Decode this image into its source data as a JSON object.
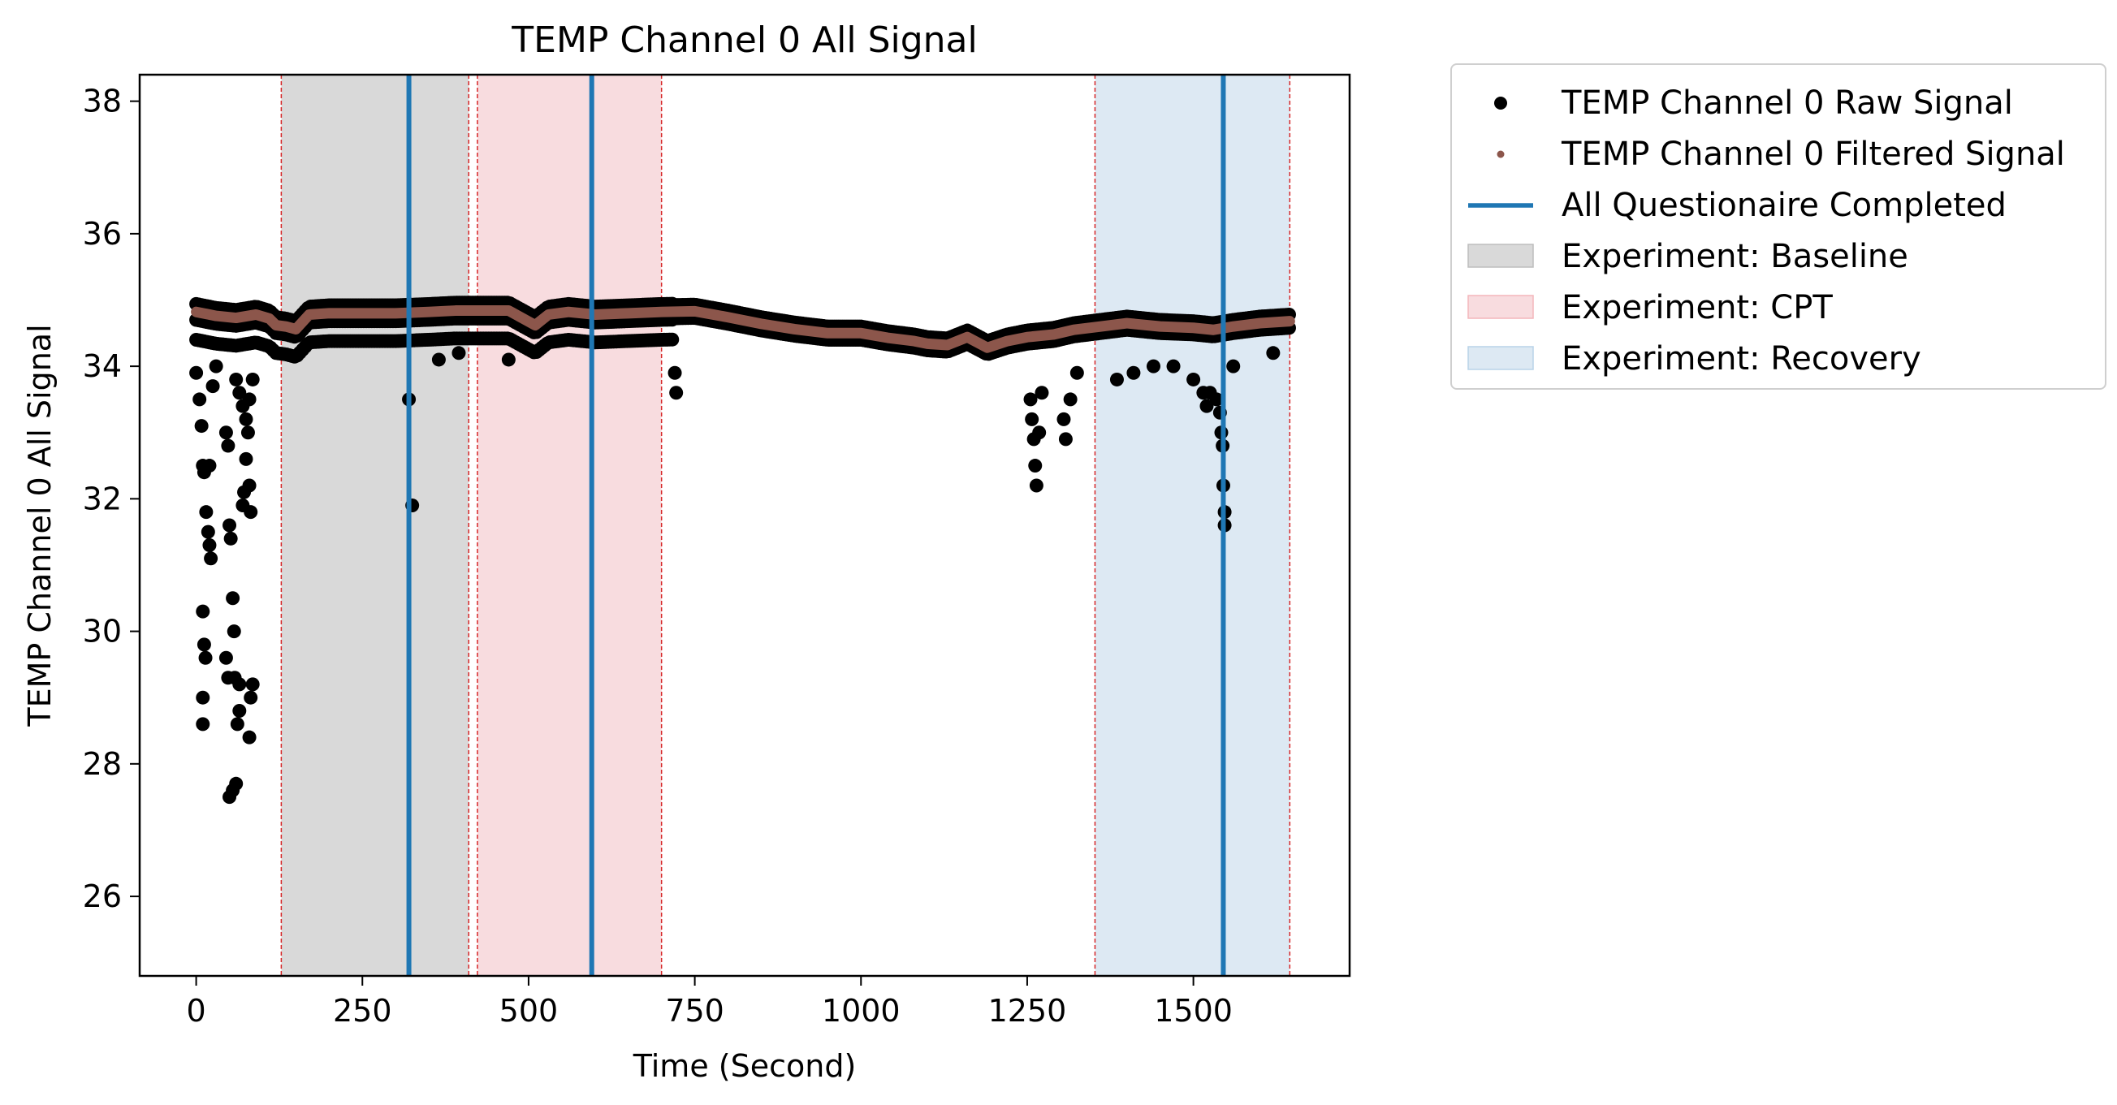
{
  "chart_data": {
    "type": "scatter",
    "title": "TEMP Channel 0 All Signal",
    "xlabel": "Time (Second)",
    "ylabel": "TEMP Channel 0 All Signal",
    "xlim": [
      -85,
      1735
    ],
    "ylim": [
      24.8,
      38.4
    ],
    "xticks": [
      0,
      250,
      500,
      750,
      1000,
      1250,
      1500
    ],
    "xtick_labels": [
      "0",
      "250",
      "500",
      "750",
      "1000",
      "1250",
      "1500"
    ],
    "yticks": [
      26,
      28,
      30,
      32,
      34,
      36,
      38
    ],
    "ytick_labels": [
      "26",
      "28",
      "30",
      "32",
      "34",
      "36",
      "38"
    ],
    "grid": false,
    "legend_position": "outside-right-top",
    "series": [
      {
        "name": "TEMP Channel 0 Raw Signal",
        "kind": "scatter",
        "color": "#000000",
        "baseline_band": [
          34.35,
          34.95
        ],
        "outliers": [
          [
            0,
            33.9
          ],
          [
            5,
            33.5
          ],
          [
            8,
            33.1
          ],
          [
            10,
            32.5
          ],
          [
            12,
            32.4
          ],
          [
            15,
            31.8
          ],
          [
            18,
            31.5
          ],
          [
            20,
            31.3
          ],
          [
            22,
            31.1
          ],
          [
            10,
            30.3
          ],
          [
            12,
            29.8
          ],
          [
            14,
            29.6
          ],
          [
            10,
            29.0
          ],
          [
            10,
            28.6
          ],
          [
            20,
            32.5
          ],
          [
            25,
            33.7
          ],
          [
            30,
            34.0
          ],
          [
            45,
            33.0
          ],
          [
            48,
            32.8
          ],
          [
            50,
            31.6
          ],
          [
            52,
            31.4
          ],
          [
            55,
            30.5
          ],
          [
            57,
            30.0
          ],
          [
            45,
            29.6
          ],
          [
            48,
            29.3
          ],
          [
            50,
            27.5
          ],
          [
            55,
            27.6
          ],
          [
            60,
            27.7
          ],
          [
            62,
            28.6
          ],
          [
            65,
            29.2
          ],
          [
            65,
            28.8
          ],
          [
            58,
            29.3
          ],
          [
            70,
            31.9
          ],
          [
            72,
            32.1
          ],
          [
            75,
            32.6
          ],
          [
            78,
            33.0
          ],
          [
            80,
            32.2
          ],
          [
            82,
            31.8
          ],
          [
            85,
            29.2
          ],
          [
            82,
            29.0
          ],
          [
            80,
            28.4
          ],
          [
            60,
            33.8
          ],
          [
            65,
            33.6
          ],
          [
            70,
            33.4
          ],
          [
            75,
            33.2
          ],
          [
            80,
            33.5
          ],
          [
            85,
            33.8
          ],
          [
            320,
            33.5
          ],
          [
            325,
            31.9
          ],
          [
            365,
            34.1
          ],
          [
            395,
            34.2
          ],
          [
            470,
            34.1
          ],
          [
            720,
            33.9
          ],
          [
            722,
            33.6
          ],
          [
            1255,
            33.5
          ],
          [
            1257,
            33.2
          ],
          [
            1260,
            32.9
          ],
          [
            1262,
            32.5
          ],
          [
            1264,
            32.2
          ],
          [
            1268,
            33.0
          ],
          [
            1272,
            33.6
          ],
          [
            1305,
            33.2
          ],
          [
            1308,
            32.9
          ],
          [
            1315,
            33.5
          ],
          [
            1325,
            33.9
          ],
          [
            1385,
            33.8
          ],
          [
            1410,
            33.9
          ],
          [
            1440,
            34.0
          ],
          [
            1470,
            34.0
          ],
          [
            1500,
            33.8
          ],
          [
            1515,
            33.6
          ],
          [
            1520,
            33.4
          ],
          [
            1525,
            33.6
          ],
          [
            1535,
            33.5
          ],
          [
            1540,
            33.3
          ],
          [
            1542,
            33.0
          ],
          [
            1544,
            32.8
          ],
          [
            1545,
            32.2
          ],
          [
            1547,
            31.8
          ],
          [
            1547,
            31.6
          ],
          [
            1560,
            34.0
          ],
          [
            1620,
            34.2
          ]
        ]
      },
      {
        "name": "TEMP Channel 0 Filtered Signal",
        "kind": "line-points",
        "color": "#8c564b",
        "x": [
          0,
          30,
          60,
          90,
          110,
          120,
          135,
          150,
          170,
          200,
          250,
          300,
          350,
          390,
          420,
          470,
          510,
          530,
          560,
          600,
          650,
          700,
          750,
          800,
          850,
          900,
          950,
          1000,
          1040,
          1080,
          1100,
          1130,
          1160,
          1190,
          1220,
          1250,
          1290,
          1320,
          1360,
          1400,
          1450,
          1500,
          1530,
          1560,
          1600,
          1645
        ],
        "y": [
          34.82,
          34.76,
          34.73,
          34.78,
          34.72,
          34.62,
          34.6,
          34.56,
          34.78,
          34.8,
          34.8,
          34.8,
          34.82,
          34.84,
          34.84,
          34.84,
          34.62,
          34.78,
          34.82,
          34.78,
          34.8,
          34.82,
          34.83,
          34.74,
          34.64,
          34.56,
          34.5,
          34.5,
          34.43,
          34.38,
          34.34,
          34.32,
          34.44,
          34.28,
          34.38,
          34.44,
          34.48,
          34.55,
          34.6,
          34.65,
          34.6,
          34.58,
          34.55,
          34.6,
          34.65,
          34.68
        ]
      },
      {
        "name": "All Questionaire Completed",
        "kind": "vline",
        "color": "#1f77b4",
        "x": [
          320,
          595,
          1545
        ]
      }
    ],
    "spans": [
      {
        "name": "Experiment: Baseline",
        "x0": 128,
        "x1": 410,
        "color": "#d9d9d9"
      },
      {
        "name": "Experiment: CPT",
        "x0": 423,
        "x1": 700,
        "color": "#f8dcdf"
      },
      {
        "name": "Experiment: Recovery",
        "x0": 1352,
        "x1": 1645,
        "color": "#dde9f3"
      }
    ],
    "span_edge_color": "#d62728"
  }
}
